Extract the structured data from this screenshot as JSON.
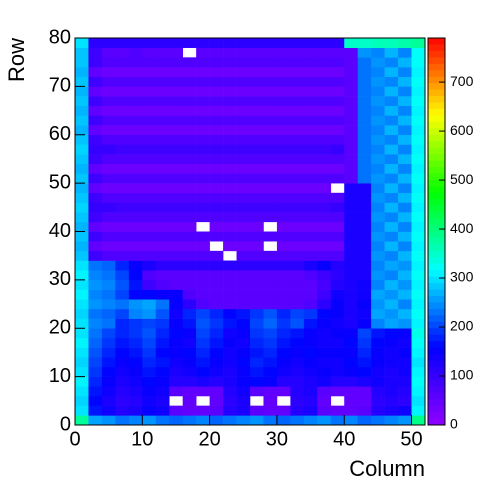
{
  "chart_data": {
    "type": "heatmap",
    "x_label": "Column",
    "y_label": "Row",
    "xlim": [
      0,
      52
    ],
    "ylim": [
      0,
      80
    ],
    "xticks": [
      0,
      10,
      20,
      30,
      40,
      50
    ],
    "yticks": [
      0,
      10,
      20,
      30,
      40,
      50,
      60,
      70,
      80
    ],
    "zlim": [
      0,
      790
    ],
    "zticks": [
      0,
      100,
      200,
      300,
      400,
      500,
      600,
      700
    ],
    "palette": [
      "#9000ff",
      "#0000ff",
      "#00ffff",
      "#00ff00",
      "#ffff00",
      "#ff0000"
    ],
    "xbins": [
      0,
      2,
      4,
      6,
      8,
      10,
      12,
      14,
      16,
      18,
      20,
      22,
      24,
      26,
      28,
      30,
      32,
      34,
      36,
      38,
      40,
      42,
      44,
      46,
      48,
      50,
      52
    ],
    "ybins": [
      0,
      2,
      4,
      6,
      8,
      10,
      12,
      14,
      16,
      18,
      20,
      22,
      24,
      26,
      28,
      30,
      32,
      34,
      36,
      38,
      40,
      42,
      44,
      46,
      48,
      50,
      52,
      54,
      56,
      58,
      60,
      62,
      64,
      66,
      68,
      70,
      72,
      74,
      76,
      78,
      80
    ],
    "z": [
      [
        380,
        260,
        250,
        230,
        240,
        250,
        230,
        220,
        230,
        240,
        220,
        230,
        240,
        250,
        230,
        220,
        230,
        240,
        250,
        230,
        240,
        220,
        230,
        240,
        250,
        390
      ],
      [
        300,
        170,
        140,
        120,
        130,
        150,
        140,
        60,
        50,
        50,
        60,
        120,
        130,
        60,
        50,
        50,
        120,
        130,
        60,
        50,
        50,
        60,
        120,
        130,
        140,
        310
      ],
      [
        290,
        160,
        130,
        110,
        120,
        140,
        130,
        null,
        50,
        null,
        50,
        110,
        130,
        null,
        50,
        null,
        110,
        120,
        50,
        null,
        50,
        50,
        110,
        120,
        110,
        300
      ],
      [
        300,
        170,
        140,
        120,
        130,
        150,
        140,
        60,
        50,
        50,
        50,
        120,
        140,
        60,
        50,
        50,
        120,
        130,
        60,
        50,
        50,
        50,
        120,
        130,
        120,
        310
      ],
      [
        310,
        180,
        150,
        130,
        140,
        160,
        150,
        120,
        120,
        130,
        120,
        130,
        150,
        160,
        150,
        120,
        120,
        130,
        140,
        120,
        120,
        130,
        140,
        130,
        130,
        320
      ],
      [
        300,
        190,
        160,
        140,
        150,
        170,
        160,
        130,
        140,
        160,
        140,
        130,
        150,
        170,
        160,
        140,
        130,
        140,
        150,
        140,
        150,
        160,
        140,
        130,
        140,
        310
      ],
      [
        290,
        200,
        170,
        150,
        160,
        180,
        170,
        140,
        150,
        170,
        150,
        140,
        160,
        180,
        170,
        150,
        140,
        150,
        140,
        140,
        160,
        170,
        150,
        140,
        140,
        300
      ],
      [
        300,
        210,
        180,
        160,
        170,
        190,
        160,
        150,
        160,
        180,
        160,
        140,
        150,
        170,
        180,
        160,
        150,
        160,
        150,
        150,
        150,
        180,
        150,
        140,
        150,
        310
      ],
      [
        310,
        220,
        190,
        170,
        180,
        200,
        170,
        150,
        140,
        190,
        170,
        150,
        140,
        180,
        190,
        170,
        160,
        150,
        140,
        140,
        160,
        190,
        160,
        150,
        140,
        320
      ],
      [
        300,
        230,
        200,
        180,
        190,
        210,
        180,
        160,
        150,
        200,
        180,
        140,
        150,
        190,
        200,
        180,
        170,
        150,
        140,
        150,
        150,
        200,
        170,
        160,
        150,
        330
      ],
      [
        300,
        240,
        230,
        180,
        190,
        200,
        190,
        150,
        170,
        210,
        190,
        170,
        160,
        200,
        220,
        190,
        210,
        170,
        150,
        140,
        130,
        150,
        240,
        260,
        250,
        310
      ],
      [
        290,
        230,
        220,
        200,
        240,
        250,
        210,
        140,
        180,
        200,
        180,
        160,
        170,
        190,
        210,
        180,
        200,
        190,
        160,
        150,
        130,
        140,
        260,
        250,
        270,
        320
      ],
      [
        300,
        250,
        240,
        230,
        250,
        260,
        230,
        150,
        110,
        70,
        60,
        60,
        60,
        60,
        60,
        60,
        60,
        70,
        110,
        150,
        130,
        150,
        250,
        270,
        240,
        310
      ],
      [
        310,
        240,
        230,
        200,
        160,
        160,
        150,
        150,
        70,
        60,
        60,
        60,
        60,
        60,
        60,
        60,
        60,
        60,
        90,
        140,
        130,
        140,
        260,
        250,
        270,
        320
      ],
      [
        300,
        250,
        240,
        210,
        170,
        90,
        70,
        60,
        60,
        60,
        60,
        60,
        60,
        60,
        60,
        60,
        60,
        60,
        80,
        120,
        130,
        140,
        240,
        270,
        250,
        310
      ],
      [
        310,
        240,
        230,
        200,
        160,
        70,
        60,
        60,
        60,
        60,
        60,
        60,
        60,
        60,
        60,
        60,
        60,
        70,
        90,
        110,
        130,
        130,
        250,
        240,
        270,
        320
      ],
      [
        300,
        230,
        220,
        180,
        150,
        130,
        110,
        110,
        110,
        110,
        110,
        110,
        110,
        110,
        110,
        110,
        110,
        130,
        150,
        120,
        130,
        130,
        240,
        260,
        250,
        310
      ],
      [
        280,
        90,
        70,
        70,
        70,
        70,
        70,
        70,
        70,
        70,
        70,
        null,
        70,
        70,
        70,
        70,
        70,
        70,
        70,
        70,
        130,
        130,
        250,
        240,
        270,
        320
      ],
      [
        270,
        50,
        40,
        40,
        40,
        40,
        40,
        40,
        40,
        40,
        null,
        40,
        40,
        40,
        null,
        40,
        40,
        40,
        40,
        40,
        130,
        130,
        240,
        270,
        240,
        310
      ],
      [
        280,
        90,
        70,
        70,
        70,
        70,
        70,
        70,
        70,
        70,
        70,
        70,
        70,
        70,
        70,
        70,
        70,
        70,
        70,
        70,
        130,
        130,
        250,
        240,
        270,
        320
      ],
      [
        270,
        50,
        40,
        40,
        40,
        40,
        40,
        40,
        40,
        null,
        40,
        40,
        40,
        40,
        null,
        40,
        40,
        40,
        40,
        40,
        130,
        130,
        240,
        270,
        240,
        310
      ],
      [
        280,
        90,
        70,
        70,
        70,
        70,
        70,
        70,
        70,
        70,
        70,
        70,
        70,
        70,
        70,
        70,
        70,
        70,
        70,
        70,
        130,
        130,
        250,
        240,
        270,
        320
      ],
      [
        290,
        100,
        100,
        90,
        90,
        90,
        90,
        90,
        90,
        90,
        90,
        90,
        90,
        90,
        90,
        90,
        90,
        90,
        90,
        100,
        130,
        130,
        240,
        270,
        240,
        310
      ],
      [
        280,
        90,
        70,
        70,
        70,
        70,
        70,
        70,
        70,
        70,
        70,
        70,
        70,
        70,
        70,
        70,
        70,
        70,
        70,
        70,
        130,
        130,
        250,
        240,
        270,
        320
      ],
      [
        270,
        50,
        40,
        40,
        40,
        40,
        40,
        40,
        40,
        40,
        40,
        40,
        40,
        40,
        40,
        40,
        40,
        40,
        40,
        null,
        130,
        130,
        240,
        270,
        240,
        310
      ],
      [
        280,
        90,
        70,
        70,
        70,
        70,
        70,
        70,
        70,
        70,
        70,
        70,
        70,
        70,
        70,
        70,
        70,
        70,
        70,
        70,
        60,
        230,
        250,
        240,
        270,
        320
      ],
      [
        270,
        50,
        40,
        40,
        40,
        40,
        40,
        40,
        40,
        40,
        40,
        40,
        40,
        40,
        40,
        40,
        40,
        40,
        40,
        40,
        60,
        230,
        240,
        270,
        240,
        310
      ],
      [
        280,
        90,
        70,
        70,
        70,
        70,
        70,
        70,
        70,
        70,
        70,
        70,
        70,
        70,
        70,
        70,
        70,
        70,
        70,
        70,
        60,
        230,
        250,
        240,
        270,
        320
      ],
      [
        290,
        100,
        100,
        90,
        90,
        90,
        90,
        90,
        90,
        90,
        90,
        90,
        90,
        90,
        90,
        90,
        90,
        90,
        90,
        100,
        60,
        230,
        240,
        270,
        240,
        310
      ],
      [
        280,
        90,
        70,
        70,
        70,
        70,
        70,
        70,
        70,
        70,
        70,
        70,
        70,
        70,
        70,
        70,
        70,
        70,
        70,
        70,
        60,
        230,
        250,
        240,
        270,
        320
      ],
      [
        270,
        50,
        40,
        40,
        40,
        40,
        40,
        40,
        40,
        40,
        40,
        40,
        40,
        40,
        40,
        40,
        40,
        40,
        40,
        40,
        60,
        230,
        240,
        270,
        240,
        310
      ],
      [
        280,
        90,
        70,
        70,
        70,
        70,
        70,
        70,
        70,
        70,
        70,
        70,
        70,
        70,
        70,
        70,
        70,
        70,
        70,
        70,
        60,
        230,
        250,
        240,
        270,
        320
      ],
      [
        270,
        50,
        40,
        40,
        40,
        40,
        40,
        40,
        40,
        40,
        40,
        40,
        40,
        40,
        40,
        40,
        40,
        40,
        40,
        40,
        60,
        230,
        240,
        270,
        240,
        310
      ],
      [
        280,
        90,
        70,
        70,
        70,
        70,
        70,
        70,
        70,
        70,
        70,
        70,
        70,
        70,
        70,
        70,
        70,
        70,
        70,
        70,
        60,
        230,
        250,
        240,
        270,
        320
      ],
      [
        270,
        50,
        40,
        40,
        40,
        40,
        40,
        40,
        40,
        40,
        40,
        40,
        40,
        40,
        40,
        40,
        40,
        40,
        40,
        40,
        60,
        230,
        240,
        270,
        240,
        310
      ],
      [
        280,
        90,
        70,
        70,
        70,
        70,
        70,
        70,
        70,
        70,
        70,
        70,
        70,
        70,
        70,
        70,
        70,
        70,
        70,
        70,
        60,
        230,
        250,
        240,
        270,
        320
      ],
      [
        270,
        50,
        40,
        40,
        40,
        40,
        40,
        40,
        40,
        40,
        40,
        40,
        40,
        40,
        40,
        40,
        40,
        40,
        40,
        40,
        60,
        230,
        240,
        270,
        240,
        310
      ],
      [
        280,
        90,
        70,
        70,
        70,
        70,
        70,
        70,
        70,
        70,
        70,
        70,
        70,
        70,
        70,
        70,
        70,
        70,
        70,
        70,
        60,
        230,
        250,
        240,
        270,
        320
      ],
      [
        280,
        90,
        60,
        60,
        70,
        60,
        60,
        60,
        null,
        60,
        60,
        60,
        60,
        60,
        60,
        60,
        60,
        60,
        60,
        60,
        60,
        250,
        240,
        270,
        240,
        320
      ],
      [
        300,
        110,
        110,
        110,
        110,
        110,
        110,
        110,
        110,
        110,
        110,
        110,
        110,
        110,
        110,
        110,
        110,
        110,
        110,
        110,
        350,
        350,
        360,
        360,
        370,
        380
      ]
    ]
  }
}
